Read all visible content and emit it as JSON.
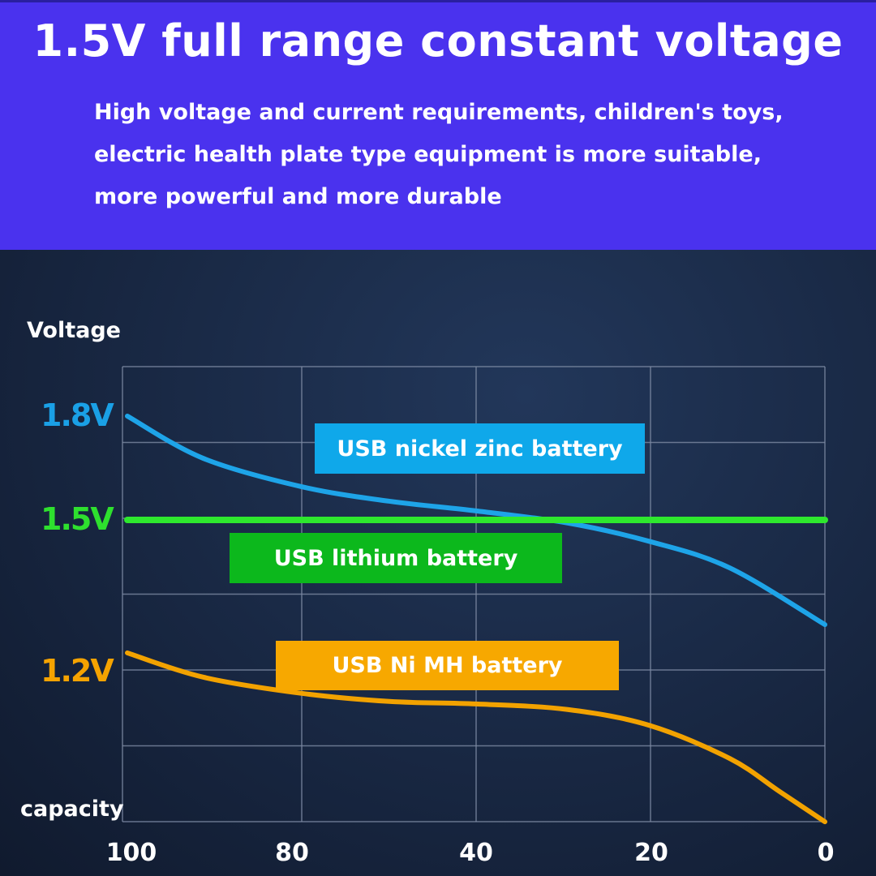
{
  "header": {
    "title": "1.5V full range constant voltage",
    "subtitle_lines": [
      "High voltage and current requirements, children's toys,",
      "electric health plate type equipment is more suitable,",
      "more powerful and more durable"
    ]
  },
  "chart_data": {
    "type": "line",
    "ylabel": "Voltage",
    "xlabel": "capacity",
    "x_ticks": [
      100,
      80,
      40,
      20,
      0
    ],
    "y_ticks": [
      {
        "label": "1.8V",
        "value": 1.8,
        "color": "#1aa0e6"
      },
      {
        "label": "1.5V",
        "value": 1.5,
        "color": "#2ee02e"
      },
      {
        "label": "1.2V",
        "value": 1.2,
        "color": "#f5a300"
      }
    ],
    "grid": true,
    "series": [
      {
        "name": "USB nickel zinc battery",
        "color": "#1ea4e8",
        "label_bg": "#0fa8ea",
        "x": [
          100,
          91.3,
          80,
          59.9,
          40,
          29.5,
          20,
          10.9,
          0
        ],
        "y": [
          1.8,
          1.678,
          1.596,
          1.554,
          1.526,
          1.494,
          1.457,
          1.405,
          1.293
        ]
      },
      {
        "name": "USB lithium battery",
        "color": "#2ee82e",
        "label_bg": "#0cb81c",
        "x": [
          100,
          0
        ],
        "y": [
          1.5,
          1.5
        ]
      },
      {
        "name": "USB Ni MH battery",
        "color": "#f2a200",
        "label_bg": "#f7a800",
        "x": [
          100,
          91.3,
          80,
          59.9,
          40,
          29.5,
          20,
          10.9,
          5.3,
          0
        ],
        "y": [
          1.237,
          1.189,
          1.157,
          1.141,
          1.136,
          1.125,
          1.093,
          1.028,
          0.964,
          0.903
        ]
      }
    ]
  }
}
